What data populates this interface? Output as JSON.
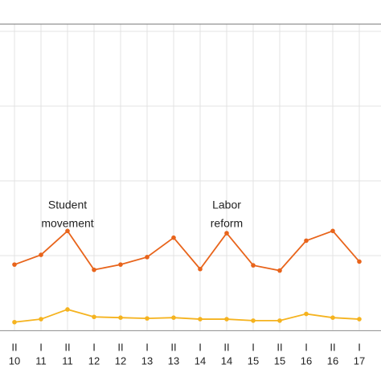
{
  "chart_data": {
    "type": "line",
    "categories": [
      [
        "II",
        "10"
      ],
      [
        "I",
        "11"
      ],
      [
        "II",
        "11"
      ],
      [
        "I",
        "12"
      ],
      [
        "II",
        "12"
      ],
      [
        "I",
        "13"
      ],
      [
        "II",
        "13"
      ],
      [
        "I",
        "14"
      ],
      [
        "II",
        "14"
      ],
      [
        "I",
        "15"
      ],
      [
        "II",
        "15"
      ],
      [
        "I",
        "16"
      ],
      [
        "II",
        "16"
      ],
      [
        "I",
        "17"
      ]
    ],
    "series": [
      {
        "color": "#e8641b",
        "values": [
          0.88,
          1.01,
          1.33,
          0.81,
          0.88,
          0.98,
          1.24,
          0.82,
          1.3,
          0.87,
          0.8,
          1.2,
          1.33,
          0.92
        ]
      },
      {
        "color": "#f5b31f",
        "values": [
          0.11,
          0.15,
          0.28,
          0.18,
          0.17,
          0.16,
          0.17,
          0.15,
          0.15,
          0.13,
          0.13,
          0.22,
          0.17,
          0.15
        ]
      }
    ],
    "annotations": [
      {
        "lines": [
          "Student",
          "movement"
        ],
        "category": 2
      },
      {
        "lines": [
          "Labor",
          "reform"
        ],
        "category": 8
      }
    ],
    "ylim": [
      0,
      4
    ],
    "yticks": [
      0,
      1,
      2,
      3,
      4
    ],
    "grid": true
  }
}
